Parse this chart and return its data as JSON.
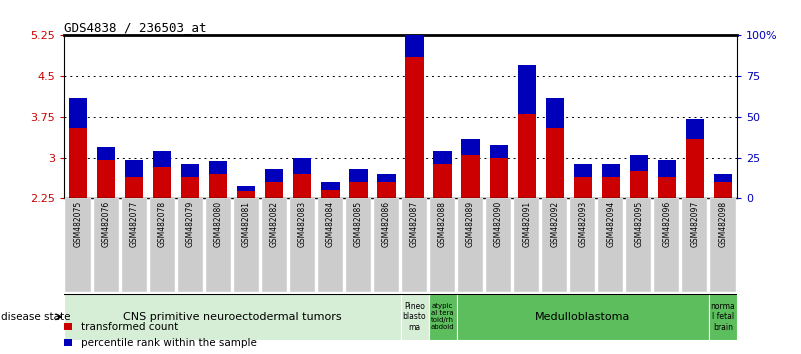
{
  "title": "GDS4838 / 236503_at",
  "samples": [
    "GSM482075",
    "GSM482076",
    "GSM482077",
    "GSM482078",
    "GSM482079",
    "GSM482080",
    "GSM482081",
    "GSM482082",
    "GSM482083",
    "GSM482084",
    "GSM482085",
    "GSM482086",
    "GSM482087",
    "GSM482088",
    "GSM482089",
    "GSM482090",
    "GSM482091",
    "GSM482092",
    "GSM482093",
    "GSM482094",
    "GSM482095",
    "GSM482096",
    "GSM482097",
    "GSM482098"
  ],
  "red_values": [
    3.55,
    2.95,
    2.65,
    2.82,
    2.65,
    2.7,
    2.38,
    2.55,
    2.7,
    2.4,
    2.55,
    2.55,
    4.85,
    2.88,
    3.05,
    3.0,
    3.8,
    3.55,
    2.65,
    2.65,
    2.75,
    2.65,
    3.35,
    2.55
  ],
  "blue_values_pct": [
    18,
    8,
    10,
    10,
    8,
    8,
    3,
    8,
    10,
    5,
    8,
    5,
    50,
    8,
    10,
    8,
    30,
    18,
    8,
    8,
    10,
    10,
    12,
    5
  ],
  "ymin": 2.25,
  "ymax": 5.25,
  "yticks_left": [
    2.25,
    3.0,
    3.75,
    4.5,
    5.25
  ],
  "ytick_labels_left": [
    "2.25",
    "3",
    "3.75",
    "4.5",
    "5.25"
  ],
  "yticks_right_pct": [
    0,
    25,
    50,
    75,
    100
  ],
  "ytick_labels_right": [
    "0",
    "25",
    "50",
    "75",
    "100%"
  ],
  "bar_color_red": "#cc0000",
  "bar_color_blue": "#0000bb",
  "tick_bg_color": "#cccccc",
  "disease_groups": [
    {
      "label": "CNS primitive neuroectodermal tumors",
      "start": 0,
      "end": 11,
      "color": "#d6eed6",
      "fontsize": 8
    },
    {
      "label": "Pineo\nblasto\nma",
      "start": 12,
      "end": 12,
      "color": "#d6eed6",
      "fontsize": 5.5
    },
    {
      "label": "atypic\nal tera\ntoid/rh\nabdoid",
      "start": 13,
      "end": 13,
      "color": "#5dbe5d",
      "fontsize": 5.0
    },
    {
      "label": "Medulloblastoma",
      "start": 14,
      "end": 22,
      "color": "#5dbe5d",
      "fontsize": 8
    },
    {
      "label": "norma\nl fetal\nbrain",
      "start": 23,
      "end": 23,
      "color": "#5dbe5d",
      "fontsize": 5.5
    }
  ],
  "legend_items": [
    {
      "label": "transformed count",
      "color": "#cc0000"
    },
    {
      "label": "percentile rank within the sample",
      "color": "#0000bb"
    }
  ]
}
